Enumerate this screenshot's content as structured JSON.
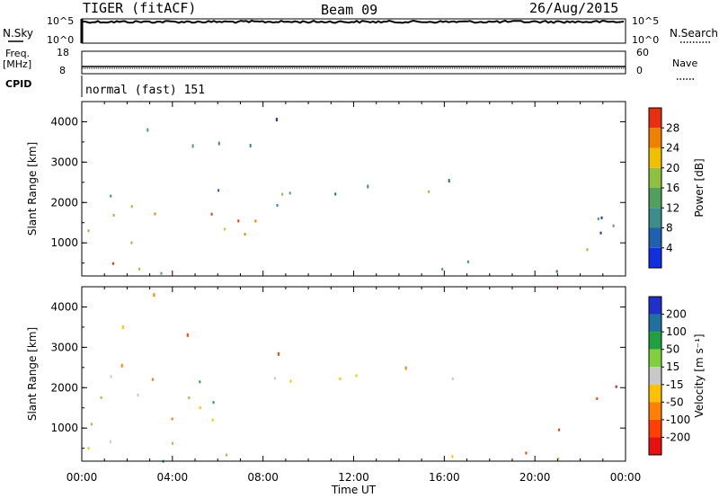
{
  "header": {
    "radar": "TIGER (fitACF)",
    "beam": "Beam 09",
    "date": "26/Aug/2015"
  },
  "top_panels": {
    "nsky_label": "N.Sky",
    "nsky_ticks": [
      "10^5",
      "10^0"
    ],
    "nsearch_label": "N.Search",
    "nsearch_ticks": [
      "10^5",
      "10^0"
    ],
    "freq_label": "Freq.",
    "freq_unit": "[MHz]",
    "freq_ticks": [
      "18",
      "8"
    ],
    "nave_label": "Nave",
    "nave_ticks": [
      "60",
      "0"
    ],
    "cpid_label": "CPID",
    "cpid_value": "normal (fast) 151"
  },
  "chart_data": [
    {
      "type": "heatmap",
      "name": "power",
      "ylabel": "Slant Range [km]",
      "ylim": [
        180,
        4500
      ],
      "yticks": [
        1000,
        2000,
        3000,
        4000
      ],
      "xlim": [
        "00:00",
        "24:00"
      ],
      "colorbar": {
        "label": "Power [dB]",
        "ticks": [
          "4",
          "8",
          "12",
          "16",
          "20",
          "24",
          "28"
        ],
        "levels": [
          0,
          4,
          8,
          12,
          16,
          20,
          24,
          28,
          32
        ],
        "colors": [
          "#1030e0",
          "#2060b0",
          "#3c8c8c",
          "#50a060",
          "#90c040",
          "#f0c000",
          "#f08000",
          "#e83010"
        ]
      },
      "features": [
        {
          "t0": 0.0,
          "t1": 8.0,
          "r0": 180,
          "r1": 400,
          "dominant": 12
        },
        {
          "t0": 0.3,
          "t1": 2.0,
          "r0": 400,
          "r1": 700,
          "dominant": 26
        },
        {
          "t0": 0.0,
          "t1": 8.0,
          "r0": 1000,
          "r1": 1800,
          "dominant": 20
        },
        {
          "t0": 5.5,
          "t1": 7.8,
          "r0": 1200,
          "r1": 1800,
          "dominant": 28
        },
        {
          "t0": 1.0,
          "t1": 10.5,
          "r0": 1800,
          "r1": 2400,
          "dominant": 12
        },
        {
          "t0": 10.0,
          "t1": 17.5,
          "r0": 2200,
          "r1": 2700,
          "dominant": 12
        },
        {
          "t0": 15.5,
          "t1": 21.5,
          "r0": 250,
          "r1": 650,
          "dominant": 12
        },
        {
          "t0": 21.0,
          "t1": 24.0,
          "r0": 800,
          "r1": 2300,
          "dominant": 10
        },
        {
          "t0": 1.0,
          "t1": 10.5,
          "r0": 2500,
          "r1": 4500,
          "dominant": 6
        }
      ]
    },
    {
      "type": "heatmap",
      "name": "velocity",
      "ylabel": "Slant Range [km]",
      "xlabel": "Time UT",
      "ylim": [
        180,
        4500
      ],
      "yticks": [
        1000,
        2000,
        3000,
        4000
      ],
      "xlim": [
        "00:00",
        "24:00"
      ],
      "xticks": [
        "00:00",
        "04:00",
        "08:00",
        "12:00",
        "16:00",
        "20:00",
        "00:00"
      ],
      "colorbar": {
        "label": "Velocity [m s⁻¹]",
        "ticks": [
          "200",
          "100",
          "50",
          "15",
          "-15",
          "-50",
          "-100",
          "-200"
        ],
        "levels": [
          250,
          200,
          100,
          50,
          15,
          -15,
          -50,
          -100,
          -200,
          -250
        ],
        "colors": [
          "#2030c8",
          "#2070a0",
          "#20a040",
          "#80d040",
          "#c8c8c8",
          "#ffc000",
          "#ff8000",
          "#ff4000",
          "#e81010"
        ]
      },
      "features": [
        {
          "t0": 0.0,
          "t1": 8.0,
          "r0": 1000,
          "r1": 1800,
          "dominant": 0
        },
        {
          "t0": 0.0,
          "t1": 8.0,
          "r0": 180,
          "r1": 700,
          "dominant": 20
        },
        {
          "t0": 1.0,
          "t1": 10.5,
          "r0": 1800,
          "r1": 2400,
          "dominant": 0
        },
        {
          "t0": 10.0,
          "t1": 17.5,
          "r0": 2200,
          "r1": 2700,
          "dominant": 0
        },
        {
          "t0": 15.5,
          "t1": 21.5,
          "r0": 250,
          "r1": 650,
          "dominant": -60
        },
        {
          "t0": 21.5,
          "t1": 24.0,
          "r0": 1600,
          "r1": 2300,
          "dominant": -220
        },
        {
          "t0": 21.0,
          "t1": 22.5,
          "r0": 800,
          "r1": 1500,
          "dominant": -150
        },
        {
          "t0": 1.0,
          "t1": 10.5,
          "r0": 2500,
          "r1": 4500,
          "dominant": -100
        }
      ]
    }
  ]
}
